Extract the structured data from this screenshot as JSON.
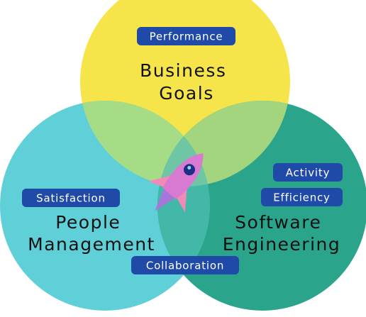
{
  "circles": {
    "business": {
      "title_lines": [
        "Business",
        "Goals"
      ],
      "color": "#f6e54a"
    },
    "people": {
      "title_lines": [
        "People",
        "Management"
      ],
      "color": "#5fd0d8"
    },
    "software": {
      "title_lines": [
        "Software",
        "Engineering"
      ],
      "color": "#2aa58c"
    }
  },
  "overlap_colors": {
    "business_people": "#a7dc86",
    "business_software": "#a3d57f",
    "people_software": "#43b8a8",
    "center": "#6fc6a4"
  },
  "tags": {
    "performance": "Performance",
    "satisfaction": "Satisfaction",
    "activity": "Activity",
    "efficiency": "Efficiency",
    "collaboration": "Collaboration"
  },
  "tag_color": "#1f4aa8",
  "center_icon": "rocket-icon",
  "rocket_colors": {
    "body": "#d97ad2",
    "window": "#1e2f86",
    "flame": "#b26fe0",
    "accent": "#f08ab8"
  }
}
